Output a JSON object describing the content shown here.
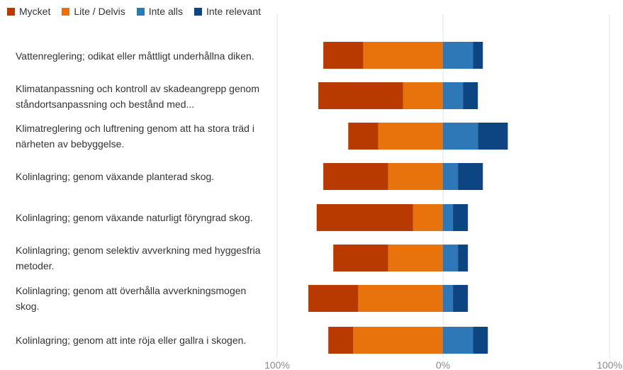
{
  "chart_data": {
    "type": "bar",
    "orientation": "horizontal",
    "stacking": "diverging",
    "legend_position": "top-left",
    "series": [
      {
        "name": "Mycket",
        "color": "#B83A00",
        "side": "negative",
        "values": [
          -24,
          -51,
          -18,
          -39,
          -58,
          -33,
          -30,
          -15
        ]
      },
      {
        "name": "Lite / Delvis",
        "color": "#E8730D",
        "side": "negative",
        "values": [
          -48,
          -24,
          -39,
          -33,
          -18,
          -33,
          -51,
          -54
        ]
      },
      {
        "name": "Inte alls",
        "color": "#2E78B7",
        "side": "positive",
        "values": [
          18,
          12,
          21,
          9,
          6,
          9,
          6,
          18
        ]
      },
      {
        "name": "Inte relevant",
        "color": "#0D4582",
        "side": "positive",
        "values": [
          6,
          9,
          18,
          15,
          9,
          6,
          9,
          9
        ]
      }
    ],
    "categories": [
      "Vattenreglering; odikat eller måttligt underhållna diken.",
      "Klimatanpassning och kontroll av skadeangrepp genom ståndortsanpassning och bestånd med...",
      "Klimatreglering och luftrening genom att ha stora träd i närheten av bebyggelse.",
      "Kolinlagring; genom växande planterad skog.",
      "Kolinlagring; genom växande naturligt föryngrad skog.",
      "Kolinlagring; genom selektiv avverkning med hyggesfria metoder.",
      "Kolinlagring; genom att överhålla avverkningsmogen skog.",
      "Kolinlagring; genom att inte röja eller gallra i skogen."
    ],
    "xlim": [
      -100,
      100
    ],
    "x_tick_labels": [
      "100%",
      "0%",
      "100%"
    ],
    "grid": true
  }
}
